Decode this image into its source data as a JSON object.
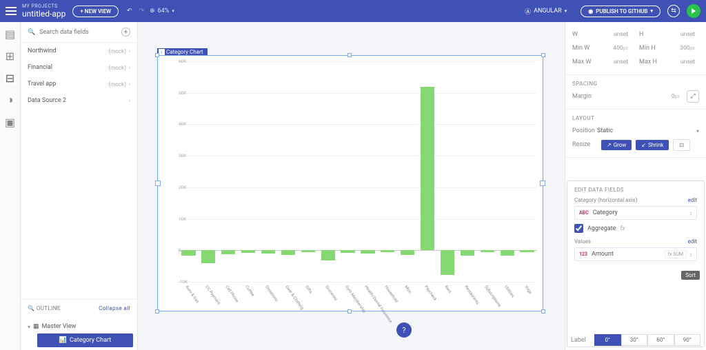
{
  "header": {
    "project_label": "MY PROJECTS",
    "app_name": "untitled-app",
    "new_view": "+ NEW VIEW",
    "zoom": "64%",
    "framework": "ANGULAR",
    "publish": "PUBLISH TO GITHUB"
  },
  "left": {
    "search_placeholder": "Search data fields",
    "sources": [
      {
        "name": "Northwind",
        "mock": true
      },
      {
        "name": "Financial",
        "mock": true
      },
      {
        "name": "Travel app",
        "mock": true
      },
      {
        "name": "Data Source 2",
        "mock": false
      }
    ],
    "outline_label": "OUTLINE",
    "collapse": "Collapse all",
    "tree_root": "Master View",
    "tree_sel": "Category Chart"
  },
  "canvas": {
    "tag": "Category Chart",
    "chart": {
      "type": "bar",
      "y_ticks": [
        "-10K",
        "0",
        "10K",
        "20K",
        "30K",
        "40K",
        "50K",
        "60K"
      ],
      "y_min": -10000,
      "y_max": 60000,
      "categories": [
        "Auto & Gas",
        "CC Payment",
        "Cell Phone",
        "Coffee",
        "Donations",
        "Gear & Clothing",
        "Gifts",
        "Groceries",
        "Gym Membership",
        "Health/Dental Insurance",
        "Household",
        "Misc",
        "Paycheck",
        "Rent",
        "Restaurants",
        "Subscriptions",
        "Utilities",
        "Yoga"
      ],
      "values": [
        -1600,
        -4200,
        -1200,
        -900,
        -1000,
        -1500,
        -700,
        -3300,
        -800,
        -1100,
        -600,
        -1400,
        52000,
        -7800,
        -1700,
        -700,
        -1600,
        -500
      ],
      "bar_color": "#86d873",
      "grid_color": "#f0f0f0"
    }
  },
  "right": {
    "dims": {
      "W": "unset",
      "H": "unset",
      "MinW": "400",
      "MinH": "300",
      "MaxW": "unset",
      "MaxH": "unset",
      "px": "px"
    },
    "spacing_title": "SPACING",
    "margin_label": "Margin",
    "margin_val": "0",
    "layout_title": "LAYOUT",
    "position_label": "Position",
    "position_val": "Static",
    "resize_label": "Resize",
    "grow": "Grow",
    "shrink": "Shrink",
    "ef_title": "EDIT DATA FIELDS",
    "cat_label": "Category (horizontal axis)",
    "edit": "edit",
    "cat_field": "Category",
    "abc": "ABC",
    "agg_label": "Aggregate",
    "fx_i": "fx",
    "val_label": "Values",
    "val_field": "Amount",
    "num": "123",
    "fx_sum": "fx SUM",
    "sort_tip": "Sort",
    "rot_label": "Label",
    "rotations": [
      "0°",
      "30°",
      "60°",
      "90°"
    ]
  },
  "help": "?"
}
